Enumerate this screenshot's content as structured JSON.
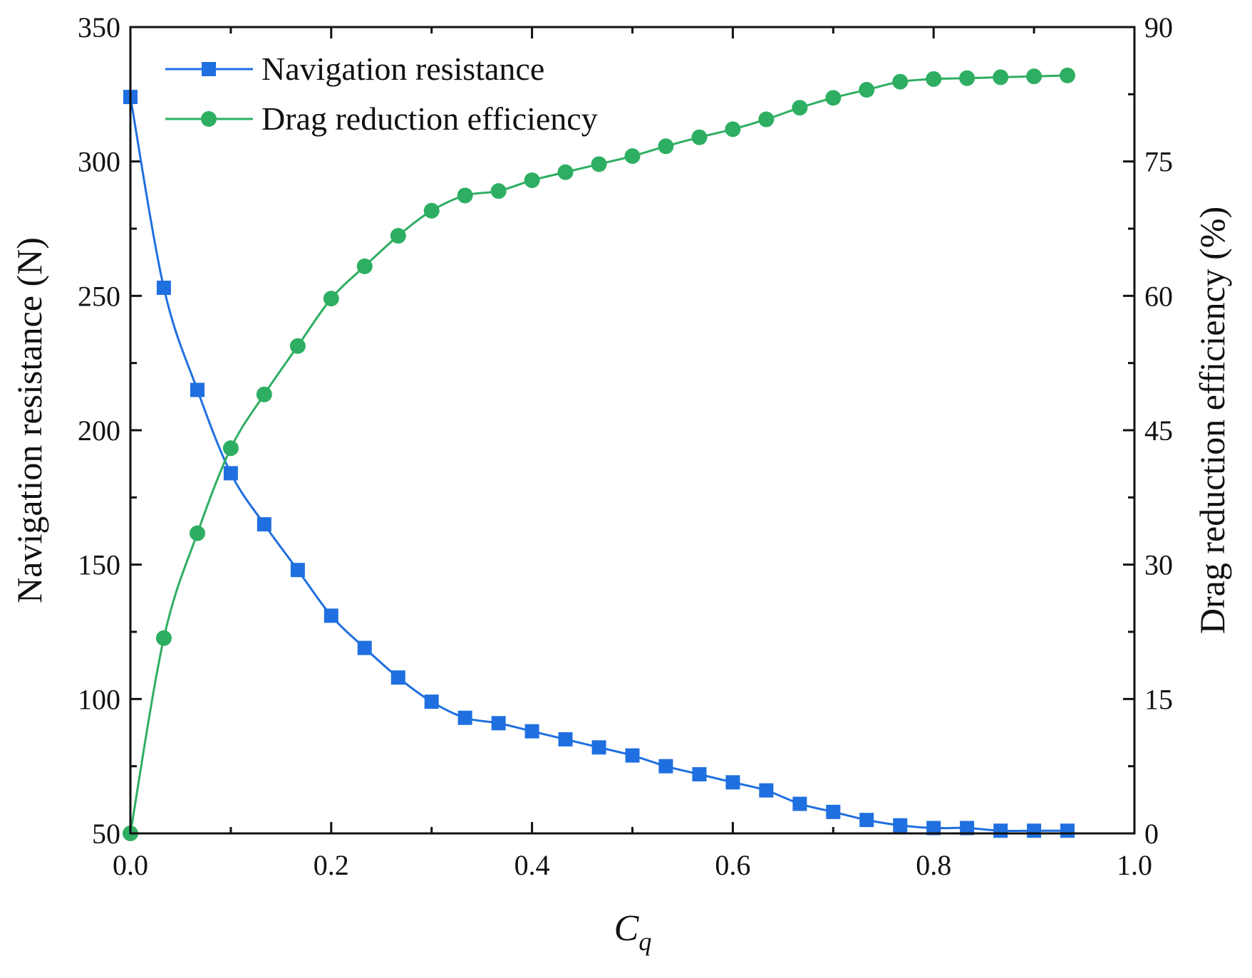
{
  "chart_data": {
    "type": "line",
    "xlabel_main": "C",
    "xlabel_sub": "q",
    "ylabel_left": "Navigation resistance (N)",
    "ylabel_right": "Drag reduction efficiency (%)",
    "xlim": [
      0.0,
      1.0
    ],
    "ylim_left": [
      50,
      350
    ],
    "ylim_right": [
      0,
      90
    ],
    "xticks": [
      "0.0",
      "0.2",
      "0.4",
      "0.6",
      "0.8",
      "1.0"
    ],
    "yticks_left": [
      "50",
      "100",
      "150",
      "200",
      "250",
      "300",
      "350"
    ],
    "yticks_right": [
      "0",
      "15",
      "30",
      "45",
      "60",
      "75",
      "90"
    ],
    "legend_position": "top-left",
    "x": [
      0.0,
      0.0333,
      0.0667,
      0.1,
      0.1333,
      0.1667,
      0.2,
      0.2333,
      0.2667,
      0.3,
      0.3333,
      0.3667,
      0.4,
      0.4333,
      0.4667,
      0.5,
      0.5333,
      0.5667,
      0.6,
      0.6333,
      0.6667,
      0.7,
      0.7333,
      0.7667,
      0.8,
      0.8333,
      0.8667,
      0.9,
      0.9333
    ],
    "series": [
      {
        "name": "Navigation resistance",
        "axis": "left",
        "marker": "square",
        "color": "#1f6fe0",
        "values": [
          324,
          253,
          215,
          184,
          165,
          148,
          131,
          119,
          108,
          99,
          93,
          91,
          88,
          85,
          82,
          79,
          75,
          72,
          69,
          66,
          61,
          58,
          55,
          53,
          52,
          52,
          51,
          51,
          51
        ]
      },
      {
        "name": "Drag reduction efficiency",
        "axis": "right",
        "marker": "circle",
        "color": "#2eae62",
        "values": [
          0,
          21.8,
          33.5,
          43.0,
          49.0,
          54.4,
          59.7,
          63.3,
          66.7,
          69.5,
          71.2,
          71.7,
          72.9,
          73.8,
          74.7,
          75.6,
          76.7,
          77.7,
          78.6,
          79.7,
          81.0,
          82.1,
          83.0,
          83.9,
          84.2,
          84.3,
          84.4,
          84.5,
          84.6
        ]
      }
    ]
  }
}
